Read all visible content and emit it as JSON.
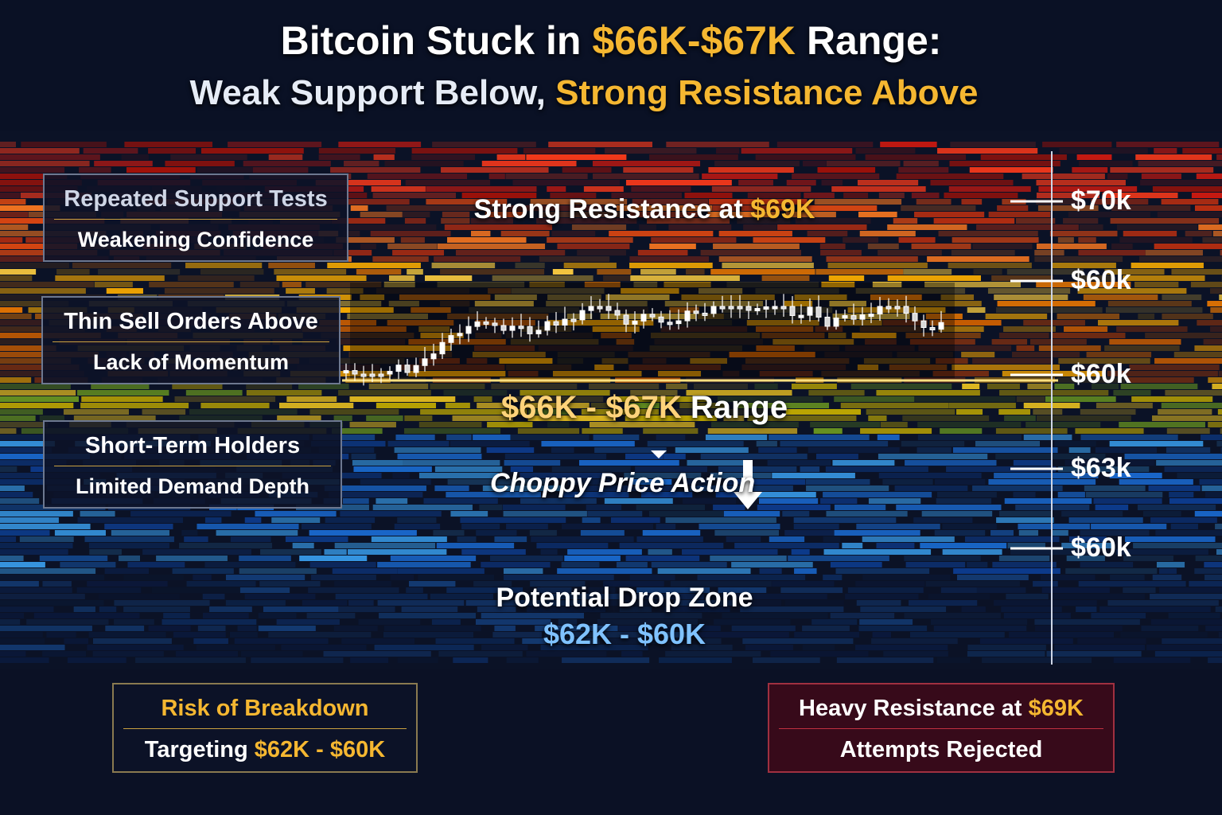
{
  "header": {
    "title": [
      "Bitcoin Stuck in",
      "$66K-$67K",
      "Range:"
    ],
    "subtitle": [
      "Weak Support Below,",
      "Strong Resistance Above"
    ]
  },
  "side_boxes": [
    {
      "title": "Repeated Support Tests",
      "subtitle": "Weakening Confidence"
    },
    {
      "title": "Thin Sell Orders Above",
      "subtitle": "Lack of Momentum"
    },
    {
      "title": "Short-Term Holders",
      "subtitle": "Limited Demand Depth"
    }
  ],
  "center": {
    "resistance": [
      "Strong Resistance at",
      "$69K"
    ],
    "range": [
      "$66K - $67K",
      "Range"
    ],
    "choppy": "Choppy Price Action",
    "drop_zone": {
      "title": "Potential Drop Zone",
      "range": "$62K - $60K"
    }
  },
  "axis_labels": [
    "$70k",
    "$60k",
    "$60k",
    "$63k",
    "$60k"
  ],
  "bottom_boxes": {
    "risk": {
      "title": "Risk of Breakdown",
      "subtitle": [
        "Targeting",
        "$62K - $60K"
      ]
    },
    "heavy": {
      "title": [
        "Heavy Resistance at",
        "$69K"
      ],
      "subtitle": "Attempts Rejected"
    }
  }
}
